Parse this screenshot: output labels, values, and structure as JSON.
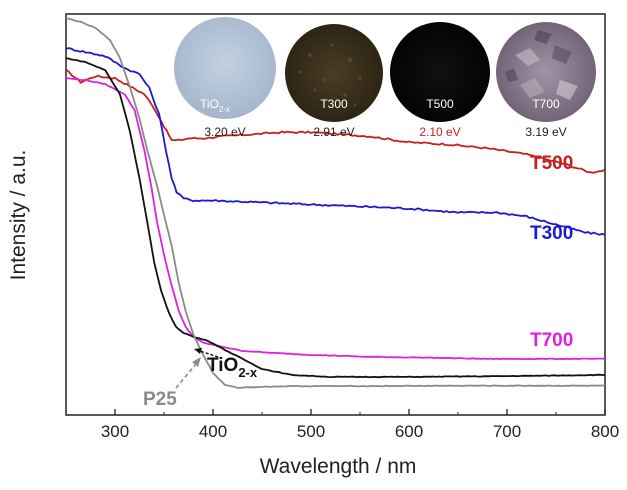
{
  "chart_data": {
    "type": "line",
    "xlabel": "Wavelength / nm",
    "ylabel": "Intensity / a.u.",
    "xlim": [
      250,
      800
    ],
    "ylim": [
      0,
      100
    ],
    "xticks": [
      "300",
      "400",
      "500",
      "600",
      "700",
      "800"
    ],
    "series": [
      {
        "name": "T500",
        "color": "#c8201e",
        "label": "T500",
        "x": [
          250,
          265,
          280,
          300,
          315,
          330,
          340,
          350,
          358,
          365,
          375,
          390,
          410,
          440,
          470,
          500,
          530,
          560,
          600,
          640,
          680,
          720,
          760,
          785,
          800
        ],
        "y": [
          86.0,
          83.0,
          84.5,
          84.0,
          82.0,
          80.0,
          76.5,
          72.0,
          68.5,
          68.5,
          69.0,
          69.0,
          69.5,
          70.0,
          70.5,
          70.5,
          70.0,
          69.5,
          68.0,
          67.5,
          66.5,
          65.0,
          62.5,
          60.5,
          61.0
        ]
      },
      {
        "name": "T300",
        "color": "#1a1ad6",
        "label": "T300",
        "x": [
          250,
          270,
          290,
          310,
          325,
          335,
          345,
          352,
          358,
          363,
          370,
          380,
          400,
          450,
          500,
          550,
          600,
          650,
          690,
          720,
          750,
          780,
          800
        ],
        "y": [
          91.5,
          90.5,
          89.5,
          86.5,
          85.0,
          81.5,
          75.0,
          66.0,
          59.0,
          55.5,
          54.0,
          53.5,
          53.5,
          53.0,
          52.5,
          52.0,
          51.5,
          50.5,
          50.5,
          49.5,
          47.5,
          45.5,
          45.0
        ]
      },
      {
        "name": "T700",
        "color": "#e020e0",
        "label": "T700",
        "x": [
          250,
          270,
          290,
          310,
          320,
          330,
          337,
          343,
          350,
          357,
          365,
          372,
          380,
          390,
          410,
          430,
          460,
          500,
          560,
          620,
          680,
          740,
          800
        ],
        "y": [
          84.0,
          83.5,
          82.5,
          80.0,
          76.0,
          66.0,
          57.0,
          48.0,
          40.0,
          33.0,
          26.0,
          22.0,
          19.5,
          18.0,
          17.0,
          16.0,
          15.5,
          15.0,
          14.5,
          14.3,
          14.0,
          14.0,
          14.0
        ]
      },
      {
        "name": "TiO2-x",
        "color": "#111111",
        "label": "TiO",
        "x": [
          250,
          270,
          290,
          305,
          315,
          325,
          333,
          340,
          347,
          355,
          362,
          370,
          380,
          395,
          410,
          430,
          450,
          480,
          520,
          600,
          700,
          800
        ],
        "y": [
          89.0,
          88.0,
          86.0,
          80.0,
          71.0,
          59.0,
          48.0,
          38.0,
          31.0,
          25.5,
          22.0,
          20.5,
          19.5,
          18.5,
          16.5,
          14.0,
          11.5,
          10.0,
          9.5,
          9.5,
          9.7,
          10.0
        ]
      },
      {
        "name": "P25",
        "color": "#8a8a8a",
        "label": "P25",
        "x": [
          250,
          265,
          280,
          295,
          305,
          315,
          325,
          333,
          342,
          350,
          358,
          365,
          372,
          380,
          390,
          400,
          412,
          425,
          445,
          480,
          550,
          650,
          800
        ],
        "y": [
          99.0,
          98.0,
          96.5,
          93.5,
          89.0,
          82.0,
          74.0,
          66.0,
          58.0,
          50.0,
          42.0,
          33.0,
          26.0,
          20.0,
          15.0,
          10.5,
          7.5,
          6.8,
          7.0,
          7.2,
          7.2,
          7.3,
          7.3
        ]
      }
    ],
    "series_labels": {
      "T500": "T500",
      "T300": "T300",
      "T700": "T700",
      "TiO2x_main": "TiO",
      "TiO2x_sub": "2-x",
      "P25": "P25"
    },
    "insets": [
      {
        "name": "TiO2-x",
        "label_main": "TiO",
        "label_sub": "2-x",
        "bandgap": "3.20 eV",
        "fill": "#b4c4d8",
        "bandgap_color": "#222222"
      },
      {
        "name": "T300",
        "label_main": "T300",
        "label_sub": "",
        "bandgap": "2.91 eV",
        "fill": "#3a301e",
        "bandgap_color": "#222222"
      },
      {
        "name": "T500",
        "label_main": "T500",
        "label_sub": "",
        "bandgap": "2.10 eV",
        "fill": "#070707",
        "bandgap_color": "#c8201e"
      },
      {
        "name": "T700",
        "label_main": "T700",
        "label_sub": "",
        "bandgap": "3.19 eV",
        "fill": "#8c7c8e",
        "bandgap_color": "#222222"
      }
    ]
  }
}
